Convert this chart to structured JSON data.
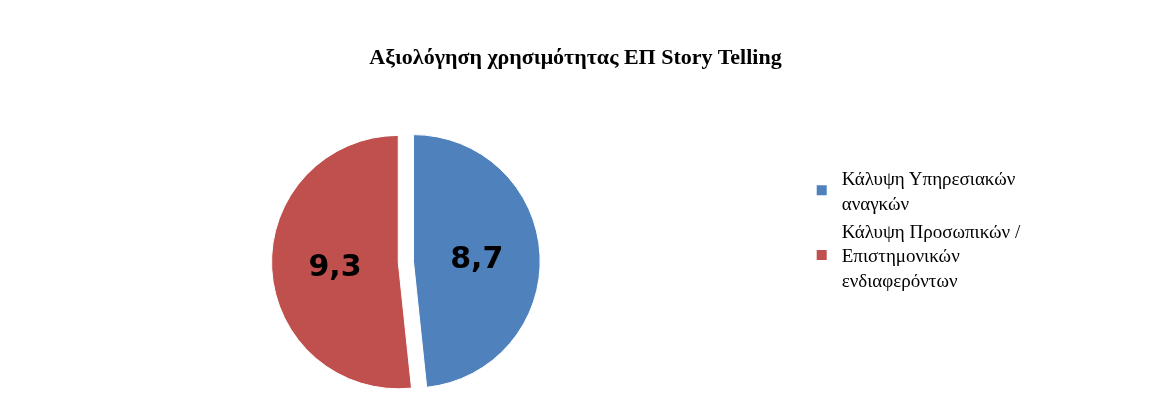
{
  "chart_data": {
    "type": "pie",
    "title": "Αξιολόγηση χρησιμότητας ΕΠ Story Telling",
    "categories": [
      "Κάλυψη Υπηρεσιακών αναγκών",
      "Κάλυψη Προσωπικών / Επιστημονικών ενδιαφερόντων"
    ],
    "values": [
      8.7,
      9.3
    ],
    "value_labels": [
      "8,7",
      "9,3"
    ],
    "colors": [
      "#4f81bd",
      "#c0504d"
    ],
    "legend": "right"
  }
}
